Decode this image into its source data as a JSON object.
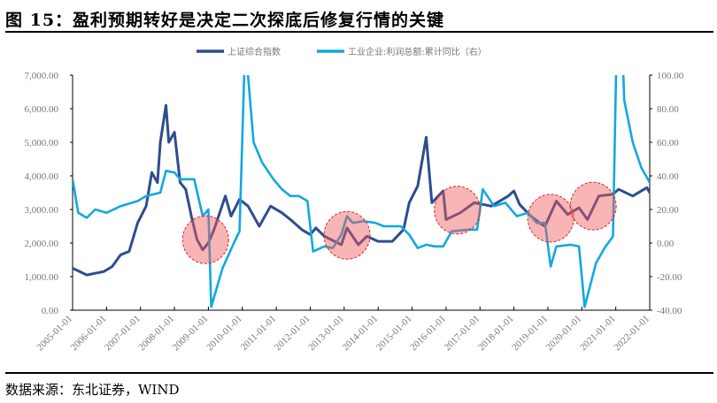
{
  "title": "图 15：盈利预期转好是决定二次探底后修复行情的关键",
  "source": "数据来源：东北证券，WIND",
  "chart_data": {
    "type": "line",
    "title": "",
    "legend_position": "top",
    "grid": false,
    "x_ticks": [
      "2005-01-01",
      "2006-01-01",
      "2007-01-01",
      "2008-01-01",
      "2009-01-01",
      "2010-01-01",
      "2011-01-01",
      "2012-01-01",
      "2013-01-01",
      "2014-01-01",
      "2015-01-01",
      "2016-01-01",
      "2017-01-01",
      "2018-01-01",
      "2019-01-01",
      "2020-01-01",
      "2021-01-01",
      "2022-01-01"
    ],
    "y_left": {
      "range": [
        0,
        7000
      ],
      "ticks": [
        "0.00",
        "1,000.00",
        "2,000.00",
        "3,000.00",
        "4,000.00",
        "5,000.00",
        "6,000.00",
        "7,000.00"
      ]
    },
    "y_right": {
      "range": [
        -40,
        100
      ],
      "ticks": [
        "-40.00",
        "-20.00",
        "0.00",
        "20.00",
        "40.00",
        "60.00",
        "80.00",
        "100.00"
      ]
    },
    "series": [
      {
        "name": "上证综合指数",
        "axis": "left",
        "color": "#2E4D8E",
        "points": [
          [
            "2005-01",
            1250
          ],
          [
            "2005-06",
            1050
          ],
          [
            "2005-12",
            1150
          ],
          [
            "2006-03",
            1300
          ],
          [
            "2006-06",
            1650
          ],
          [
            "2006-09",
            1750
          ],
          [
            "2006-12",
            2600
          ],
          [
            "2007-03",
            3100
          ],
          [
            "2007-05",
            4100
          ],
          [
            "2007-07",
            3800
          ],
          [
            "2007-08",
            5000
          ],
          [
            "2007-10",
            6100
          ],
          [
            "2007-11",
            5000
          ],
          [
            "2008-01",
            5300
          ],
          [
            "2008-03",
            3800
          ],
          [
            "2008-05",
            3600
          ],
          [
            "2008-07",
            2800
          ],
          [
            "2008-09",
            2100
          ],
          [
            "2008-11",
            1800
          ],
          [
            "2009-01",
            2000
          ],
          [
            "2009-03",
            2400
          ],
          [
            "2009-07",
            3400
          ],
          [
            "2009-09",
            2800
          ],
          [
            "2009-12",
            3300
          ],
          [
            "2010-03",
            3100
          ],
          [
            "2010-07",
            2500
          ],
          [
            "2010-11",
            3100
          ],
          [
            "2011-03",
            2900
          ],
          [
            "2011-06",
            2700
          ],
          [
            "2011-10",
            2400
          ],
          [
            "2012-01",
            2250
          ],
          [
            "2012-03",
            2450
          ],
          [
            "2012-06",
            2200
          ],
          [
            "2012-12",
            1950
          ],
          [
            "2013-02",
            2450
          ],
          [
            "2013-06",
            1950
          ],
          [
            "2013-09",
            2200
          ],
          [
            "2014-01",
            2050
          ],
          [
            "2014-06",
            2050
          ],
          [
            "2014-10",
            2400
          ],
          [
            "2014-12",
            3200
          ],
          [
            "2015-03",
            3700
          ],
          [
            "2015-06",
            5150
          ],
          [
            "2015-08",
            3200
          ],
          [
            "2015-12",
            3550
          ],
          [
            "2016-01",
            2700
          ],
          [
            "2016-06",
            2900
          ],
          [
            "2016-11",
            3200
          ],
          [
            "2017-05",
            3100
          ],
          [
            "2017-11",
            3400
          ],
          [
            "2018-01",
            3550
          ],
          [
            "2018-03",
            3150
          ],
          [
            "2018-07",
            2800
          ],
          [
            "2018-10",
            2600
          ],
          [
            "2018-12",
            2500
          ],
          [
            "2019-04",
            3250
          ],
          [
            "2019-08",
            2850
          ],
          [
            "2019-12",
            3050
          ],
          [
            "2020-03",
            2700
          ],
          [
            "2020-07",
            3400
          ],
          [
            "2020-12",
            3450
          ],
          [
            "2021-02",
            3600
          ],
          [
            "2021-07",
            3400
          ],
          [
            "2021-12",
            3650
          ],
          [
            "2022-01",
            3500
          ]
        ]
      },
      {
        "name": "工业企业:利润总额:累计同比（右）",
        "axis": "right",
        "color": "#12A8E0",
        "points": [
          [
            "2005-01",
            38
          ],
          [
            "2005-03",
            18
          ],
          [
            "2005-06",
            15
          ],
          [
            "2005-09",
            20
          ],
          [
            "2006-01",
            18
          ],
          [
            "2006-06",
            22
          ],
          [
            "2006-12",
            25
          ],
          [
            "2007-03",
            28
          ],
          [
            "2007-08",
            30
          ],
          [
            "2007-10",
            43
          ],
          [
            "2008-01",
            42
          ],
          [
            "2008-03",
            38
          ],
          [
            "2008-08",
            38
          ],
          [
            "2008-11",
            16
          ],
          [
            "2009-01",
            20
          ],
          [
            "2009-02",
            -38
          ],
          [
            "2009-06",
            -15
          ],
          [
            "2009-10",
            0
          ],
          [
            "2009-12",
            7
          ],
          [
            "2010-02",
            120
          ],
          [
            "2010-05",
            60
          ],
          [
            "2010-08",
            48
          ],
          [
            "2010-12",
            38
          ],
          [
            "2011-03",
            32
          ],
          [
            "2011-06",
            28
          ],
          [
            "2011-09",
            28
          ],
          [
            "2011-12",
            25
          ],
          [
            "2012-02",
            -5
          ],
          [
            "2012-06",
            -2
          ],
          [
            "2012-09",
            -3
          ],
          [
            "2012-12",
            5
          ],
          [
            "2013-02",
            16
          ],
          [
            "2013-04",
            12
          ],
          [
            "2013-08",
            13
          ],
          [
            "2013-12",
            12
          ],
          [
            "2014-03",
            10
          ],
          [
            "2014-06",
            10
          ],
          [
            "2014-09",
            10
          ],
          [
            "2014-12",
            5
          ],
          [
            "2015-03",
            -3
          ],
          [
            "2015-06",
            -1
          ],
          [
            "2015-09",
            -2
          ],
          [
            "2015-12",
            -2
          ],
          [
            "2016-03",
            7
          ],
          [
            "2016-09",
            8
          ],
          [
            "2016-12",
            8
          ],
          [
            "2017-02",
            32
          ],
          [
            "2017-06",
            22
          ],
          [
            "2017-10",
            24
          ],
          [
            "2018-02",
            16
          ],
          [
            "2018-06",
            18
          ],
          [
            "2018-09",
            12
          ],
          [
            "2018-12",
            12
          ],
          [
            "2019-02",
            -14
          ],
          [
            "2019-04",
            -2
          ],
          [
            "2019-09",
            -1
          ],
          [
            "2019-12",
            -2
          ],
          [
            "2020-02",
            -38
          ],
          [
            "2020-06",
            -12
          ],
          [
            "2020-09",
            -3
          ],
          [
            "2020-12",
            4
          ],
          [
            "2021-02",
            180
          ],
          [
            "2021-04",
            85
          ],
          [
            "2021-07",
            60
          ],
          [
            "2021-10",
            45
          ],
          [
            "2022-01",
            36
          ]
        ]
      }
    ],
    "highlights": [
      [
        "2008-12",
        2100
      ],
      [
        "2013-02",
        2230
      ],
      [
        "2016-05",
        2980
      ],
      [
        "2019-02",
        2740
      ],
      [
        "2020-05",
        3100
      ]
    ]
  }
}
